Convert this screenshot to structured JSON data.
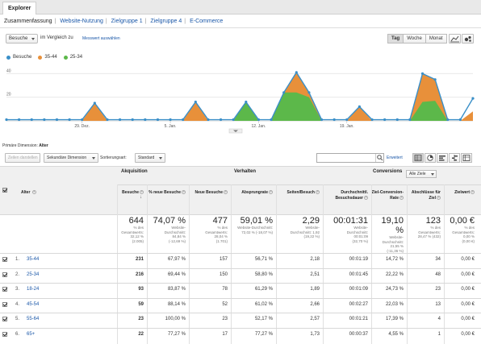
{
  "tabs": {
    "explorer": "Explorer"
  },
  "subtabs": [
    {
      "label": "Zusammenfassung",
      "active": true
    },
    {
      "label": "Website-Nutzung",
      "active": false
    },
    {
      "label": "Zielgruppe 1",
      "active": false
    },
    {
      "label": "Zielgruppe 4",
      "active": false
    },
    {
      "label": "E-Commerce",
      "active": false
    }
  ],
  "controls": {
    "metric": "Besuche",
    "compare_label": "im Vergleich zu",
    "compare_link": "Messwert auswählen",
    "periods": [
      "Tag",
      "Woche",
      "Monat"
    ],
    "active_period": "Tag"
  },
  "legend": [
    {
      "label": "Besuche",
      "color": "#3a8fc8"
    },
    {
      "label": "35-44",
      "color": "#e8903a"
    },
    {
      "label": "25-34",
      "color": "#5cb84a"
    }
  ],
  "chart_data": {
    "type": "area",
    "y_ticks": [
      "40",
      "20"
    ],
    "ylim": [
      0,
      45
    ],
    "x_tick_labels": [
      {
        "index": 6,
        "label": "29. Dez."
      },
      {
        "index": 13,
        "label": "5. Jan."
      },
      {
        "index": 20,
        "label": "12. Jan."
      },
      {
        "index": 27,
        "label": "19. Jan."
      }
    ],
    "series": [
      {
        "name": "Besuche",
        "values": [
          1,
          1,
          1,
          1,
          1,
          1,
          1,
          15,
          1,
          1,
          1,
          1,
          1,
          1,
          1,
          16,
          1,
          1,
          1,
          16,
          1,
          1,
          24,
          41,
          24,
          1,
          1,
          1,
          12,
          1,
          1,
          1,
          1,
          40,
          35,
          1,
          1,
          19
        ]
      },
      {
        "name": "35-44",
        "values": [
          0,
          0,
          0,
          0,
          0,
          0,
          0,
          15,
          0,
          0,
          0,
          0,
          0,
          0,
          0,
          16,
          0,
          0,
          0,
          0,
          0,
          0,
          12,
          22,
          16,
          0,
          0,
          0,
          12,
          0,
          0,
          0,
          0,
          33,
          28,
          0,
          0,
          8
        ]
      },
      {
        "name": "25-34",
        "values": [
          0,
          0,
          0,
          0,
          0,
          0,
          0,
          0,
          0,
          0,
          0,
          0,
          0,
          0,
          0,
          0,
          0,
          0,
          0,
          16,
          0,
          0,
          24,
          24,
          20,
          0,
          0,
          0,
          0,
          0,
          0,
          0,
          0,
          16,
          17,
          0,
          0,
          0
        ]
      }
    ]
  },
  "primary_dimension": {
    "label": "Primäre Dimension:",
    "value": "Alter"
  },
  "toolbar": {
    "plot_rows": "Zeilen darstellen",
    "secondary_dimension": "Sekundäre Dimension",
    "sort_label": "Sortierungsart:",
    "sort_value": "Standard",
    "advanced": "Erweitert"
  },
  "table": {
    "groups": {
      "acquisition": "Akquisition",
      "behavior": "Verhalten",
      "conversions": "Conversions",
      "goal_select": "Alle Ziele"
    },
    "dimension_header": "Alter",
    "columns": [
      "Besuche",
      "% neue Besuche",
      "Neue Besuche",
      "Absprungrate",
      "Seiten/Besuch",
      "Durchschnittl. Besuchsdauer",
      "Ziel-Conversion-Rate",
      "Abschlüsse für Ziel",
      "Zielwert"
    ],
    "totals": [
      {
        "value": "644",
        "sub": [
          "% des",
          "Gesamtwerts:",
          "32,12 %",
          "(2.005)"
        ]
      },
      {
        "value": "74,07 %",
        "sub": [
          "Website-",
          "Durchschnitt:",
          "84,84 %",
          "(-12,69 %)"
        ]
      },
      {
        "value": "477",
        "sub": [
          "% des",
          "Gesamtwerts:",
          "28,04 %",
          "(1.701)"
        ]
      },
      {
        "value": "59,01 %",
        "sub": [
          "Website-Durchschnitt:",
          "72,02 % (-18,07 %)"
        ]
      },
      {
        "value": "2,29",
        "sub": [
          "Website-",
          "Durchschnitt: 1,92",
          "(19,22 %)"
        ]
      },
      {
        "value": "00:01:31",
        "sub": [
          "Website-",
          "Durchschnitt:",
          "00:01:09",
          "(32,70 %)"
        ]
      },
      {
        "value": "19,10 %",
        "sub": [
          "Website-",
          "Durchschnitt:",
          "21,55 %",
          "(-11,36 %)"
        ]
      },
      {
        "value": "123",
        "sub": [
          "% des",
          "Gesamtwerts:",
          "28,47 % (432)"
        ]
      },
      {
        "value": "0,00 €",
        "sub": [
          "% des",
          "Gesamtwerts:",
          "0,00 %",
          "(0,00 €)"
        ]
      }
    ],
    "rows": [
      {
        "n": "1.",
        "label": "35-44",
        "cells": [
          "231",
          "67,97 %",
          "157",
          "56,71 %",
          "2,18",
          "00:01:19",
          "14,72 %",
          "34",
          "0,00 €"
        ]
      },
      {
        "n": "2.",
        "label": "25-34",
        "cells": [
          "216",
          "69,44 %",
          "150",
          "58,80 %",
          "2,51",
          "00:01:45",
          "22,22 %",
          "48",
          "0,00 €"
        ]
      },
      {
        "n": "3.",
        "label": "18-24",
        "cells": [
          "93",
          "83,87 %",
          "78",
          "61,29 %",
          "1,89",
          "00:01:09",
          "24,73 %",
          "23",
          "0,00 €"
        ]
      },
      {
        "n": "4.",
        "label": "45-54",
        "cells": [
          "59",
          "88,14 %",
          "52",
          "61,02 %",
          "2,66",
          "00:02:27",
          "22,03 %",
          "13",
          "0,00 €"
        ]
      },
      {
        "n": "5.",
        "label": "55-64",
        "cells": [
          "23",
          "100,00 %",
          "23",
          "52,17 %",
          "2,57",
          "00:01:21",
          "17,39 %",
          "4",
          "0,00 €"
        ]
      },
      {
        "n": "6.",
        "label": "65+",
        "cells": [
          "22",
          "77,27 %",
          "17",
          "77,27 %",
          "1,73",
          "00:00:37",
          "4,55 %",
          "1",
          "0,00 €"
        ]
      }
    ]
  }
}
